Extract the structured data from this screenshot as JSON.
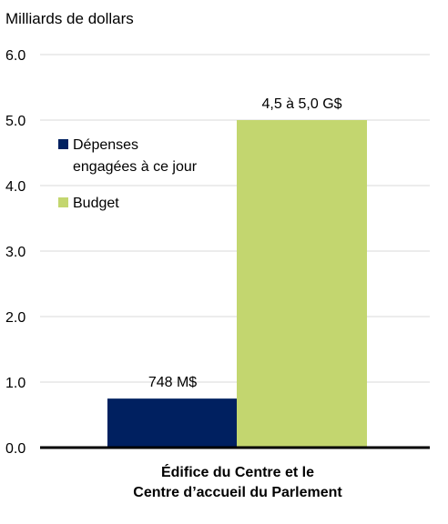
{
  "chart_data": {
    "type": "bar",
    "unit_label": "Milliards de dollars",
    "categories": [
      "Édifice du Centre et le\nCentre d’accueil du Parlement"
    ],
    "category_lines": [
      "Édifice du Centre et le",
      "Centre d’accueil du Parlement"
    ],
    "series": [
      {
        "name": "Dépenses engagées à ce jour",
        "legend_lines": [
          "Dépenses",
          "engagées à ce jour"
        ],
        "values": [
          0.748
        ],
        "label": "748 M$",
        "color": "#002060"
      },
      {
        "name": "Budget",
        "legend_lines": [
          "Budget"
        ],
        "values": [
          5.0
        ],
        "label": "4,5 à 5,0 G$",
        "color": "#C3D66F"
      }
    ],
    "yticks": [
      "0.0",
      "1.0",
      "2.0",
      "3.0",
      "4.0",
      "5.0",
      "6.0"
    ],
    "ylim": [
      0,
      6
    ],
    "grid": true,
    "legend_position": "upper-left"
  }
}
